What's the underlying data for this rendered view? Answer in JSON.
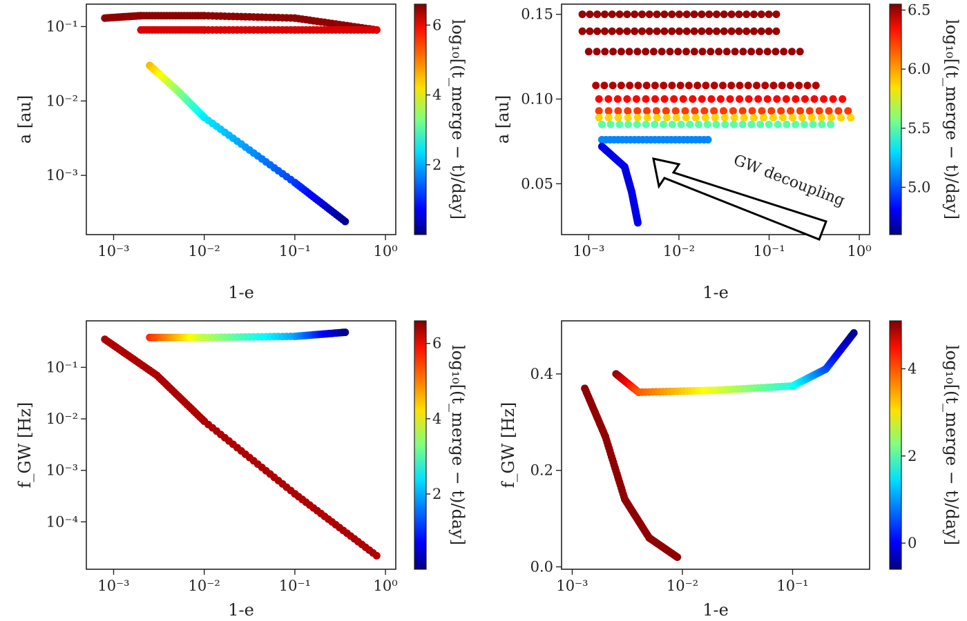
{
  "figure": {
    "panels": [
      {
        "id": "p1",
        "xlabel": "1-e",
        "ylabel": "a [au]",
        "xscale": "log",
        "yscale": "log",
        "xlim": [
          0.0005,
          1.3
        ],
        "ylim": [
          0.00016,
          0.2
        ],
        "xticks": [
          {
            "v": 0.001,
            "t": "10⁻³"
          },
          {
            "v": 0.01,
            "t": "10⁻²"
          },
          {
            "v": 0.1,
            "t": "10⁻¹"
          },
          {
            "v": 1,
            "t": "10⁰"
          }
        ],
        "yticks": [
          {
            "v": 0.1,
            "t": "10⁻¹"
          },
          {
            "v": 0.01,
            "t": "10⁻²"
          },
          {
            "v": 0.001,
            "t": "10⁻³"
          }
        ],
        "colorbar": {
          "label": "log₁₀[(t_merge − t)/day]",
          "range": [
            0,
            6.6
          ],
          "ticks": [
            2,
            4,
            6
          ]
        }
      },
      {
        "id": "p2",
        "xlabel": "1-e",
        "ylabel": "a [au]",
        "xscale": "log",
        "yscale": "linear",
        "xlim": [
          0.0005,
          1.3
        ],
        "ylim": [
          0.02,
          0.156
        ],
        "xticks": [
          {
            "v": 0.001,
            "t": "10⁻³"
          },
          {
            "v": 0.01,
            "t": "10⁻²"
          },
          {
            "v": 0.1,
            "t": "10⁻¹"
          },
          {
            "v": 1,
            "t": "10⁰"
          }
        ],
        "yticks": [
          {
            "v": 0.05,
            "t": "0.05"
          },
          {
            "v": 0.1,
            "t": "0.10"
          },
          {
            "v": 0.15,
            "t": "0.15"
          }
        ],
        "colorbar": {
          "label": "log₁₀[(t_merge − t)/day]",
          "range": [
            4.6,
            6.55
          ],
          "ticks": [
            5.0,
            5.5,
            6.0,
            6.5
          ]
        },
        "annotation": "GW decoupling"
      },
      {
        "id": "p3",
        "xlabel": "1-e",
        "ylabel": "f_GW [Hz]",
        "xscale": "log",
        "yscale": "log",
        "xlim": [
          0.0005,
          1.3
        ],
        "ylim": [
          1.2e-05,
          0.8
        ],
        "xticks": [
          {
            "v": 0.001,
            "t": "10⁻³"
          },
          {
            "v": 0.01,
            "t": "10⁻²"
          },
          {
            "v": 0.1,
            "t": "10⁻¹"
          },
          {
            "v": 1,
            "t": "10⁰"
          }
        ],
        "yticks": [
          {
            "v": 0.1,
            "t": "10⁻¹"
          },
          {
            "v": 0.01,
            "t": "10⁻²"
          },
          {
            "v": 0.001,
            "t": "10⁻³"
          },
          {
            "v": 0.0001,
            "t": "10⁻⁴"
          }
        ],
        "colorbar": {
          "label": "log₁₀[(t_merge − t)/day]",
          "range": [
            0,
            6.6
          ],
          "ticks": [
            2,
            4,
            6
          ]
        }
      },
      {
        "id": "p4",
        "xlabel": "1-e",
        "ylabel": "f_GW [Hz]",
        "xscale": "log",
        "yscale": "linear",
        "xlim": [
          0.0008,
          0.5
        ],
        "ylim": [
          -0.005,
          0.51
        ],
        "xticks": [
          {
            "v": 0.001,
            "t": "10⁻³"
          },
          {
            "v": 0.01,
            "t": "10⁻²"
          },
          {
            "v": 0.1,
            "t": "10⁻¹"
          }
        ],
        "yticks": [
          {
            "v": 0.0,
            "t": "0.0"
          },
          {
            "v": 0.2,
            "t": "0.2"
          },
          {
            "v": 0.4,
            "t": "0.4"
          }
        ],
        "colorbar": {
          "label": "log₁₀[(t_merge − t)/day]",
          "range": [
            -0.6,
            5.1
          ],
          "ticks": [
            0,
            2,
            4
          ]
        }
      }
    ]
  },
  "chart_data": [
    {
      "type": "scatter",
      "panel": "top-left",
      "xlabel": "1-e",
      "ylabel": "a [au]",
      "xscale": "log",
      "yscale": "log",
      "xlim": [
        0.0005,
        1.3
      ],
      "ylim": [
        0.00016,
        0.2
      ],
      "colorbar_label": "log10[(t_merge - t)/day]",
      "colorbar_range": [
        0,
        6.6
      ],
      "colormap": "jet",
      "series": [
        {
          "values_x": [
            0.0008,
            0.002,
            0.01,
            0.1,
            0.8
          ],
          "values_y": [
            0.13,
            0.14,
            0.14,
            0.13,
            0.09
          ],
          "c": 6.5
        },
        {
          "values_x": [
            0.002,
            0.01,
            0.1,
            0.8
          ],
          "values_y": [
            0.09,
            0.09,
            0.09,
            0.09
          ],
          "c": 6.0
        },
        {
          "values_x": [
            0.0025,
            0.005,
            0.01,
            0.1,
            0.36
          ],
          "values_y": [
            0.03,
            0.014,
            0.006,
            0.0008,
            0.00024
          ],
          "c_range": [
            4.6,
            0.1
          ]
        }
      ]
    },
    {
      "type": "scatter",
      "panel": "top-right",
      "xlabel": "1-e",
      "ylabel": "a [au]",
      "xscale": "log",
      "yscale": "linear",
      "xlim": [
        0.0005,
        1.3
      ],
      "ylim": [
        0.02,
        0.156
      ],
      "colorbar_label": "log10[(t_merge - t)/day]",
      "colorbar_range": [
        4.6,
        6.55
      ],
      "colormap": "jet",
      "annotation": "GW decoupling",
      "series": [
        {
          "name": "",
          "x_range": [
            0.00085,
            0.12
          ],
          "y": 0.15,
          "c": 6.5
        },
        {
          "x_range": [
            0.00085,
            0.12
          ],
          "y": 0.14,
          "c": 6.5
        },
        {
          "x_range": [
            0.001,
            0.22
          ],
          "y": 0.128,
          "c": 6.5
        },
        {
          "x_range": [
            0.0012,
            0.33
          ],
          "y": 0.108,
          "c": 6.45
        },
        {
          "x_range": [
            0.0013,
            0.65
          ],
          "y": 0.1,
          "c": 6.3
        },
        {
          "x_range": [
            0.0013,
            0.75
          ],
          "y": 0.093,
          "c": 6.2
        },
        {
          "x_range": [
            0.0013,
            0.8
          ],
          "y": 0.089,
          "c": 5.9
        },
        {
          "x_range": [
            0.0014,
            0.48
          ],
          "y": 0.085,
          "c": 5.5
        },
        {
          "x_range": [
            0.0014,
            0.021
          ],
          "y": 0.076,
          "c": 5.1
        },
        {
          "values_x": [
            0.0014,
            0.0025,
            0.003,
            0.0035
          ],
          "values_y": [
            0.072,
            0.06,
            0.045,
            0.027
          ],
          "c": 4.8
        }
      ]
    },
    {
      "type": "scatter",
      "panel": "bottom-left",
      "xlabel": "1-e",
      "ylabel": "f_GW [Hz]",
      "xscale": "log",
      "yscale": "log",
      "xlim": [
        0.0005,
        1.3
      ],
      "ylim": [
        1.2e-05,
        0.8
      ],
      "colorbar_label": "log10[(t_merge - t)/day]",
      "colorbar_range": [
        0,
        6.6
      ],
      "colormap": "jet",
      "series": [
        {
          "values_x": [
            0.0025,
            0.01,
            0.1,
            0.36
          ],
          "values_y": [
            0.38,
            0.38,
            0.4,
            0.48
          ],
          "c_range": [
            5.5,
            0.1
          ]
        },
        {
          "values_x": [
            0.0008,
            0.003,
            0.01,
            0.1,
            0.8
          ],
          "values_y": [
            0.35,
            0.07,
            0.009,
            0.00035,
            2.2e-05
          ],
          "c": 6.3
        }
      ]
    },
    {
      "type": "scatter",
      "panel": "bottom-right",
      "xlabel": "1-e",
      "ylabel": "f_GW [Hz]",
      "xscale": "log",
      "yscale": "linear",
      "xlim": [
        0.0008,
        0.5
      ],
      "ylim": [
        -0.005,
        0.51
      ],
      "colorbar_label": "log10[(t_merge - t)/day]",
      "colorbar_range": [
        -0.6,
        5.1
      ],
      "colormap": "jet",
      "series": [
        {
          "values_x": [
            0.0013,
            0.002,
            0.003,
            0.005,
            0.009
          ],
          "values_y": [
            0.37,
            0.27,
            0.14,
            0.06,
            0.02
          ],
          "c": 5.0
        },
        {
          "values_x": [
            0.0025,
            0.004,
            0.02,
            0.1,
            0.2,
            0.36
          ],
          "values_y": [
            0.4,
            0.362,
            0.366,
            0.375,
            0.41,
            0.485
          ],
          "c_range": [
            5.0,
            -0.5
          ]
        }
      ]
    }
  ]
}
